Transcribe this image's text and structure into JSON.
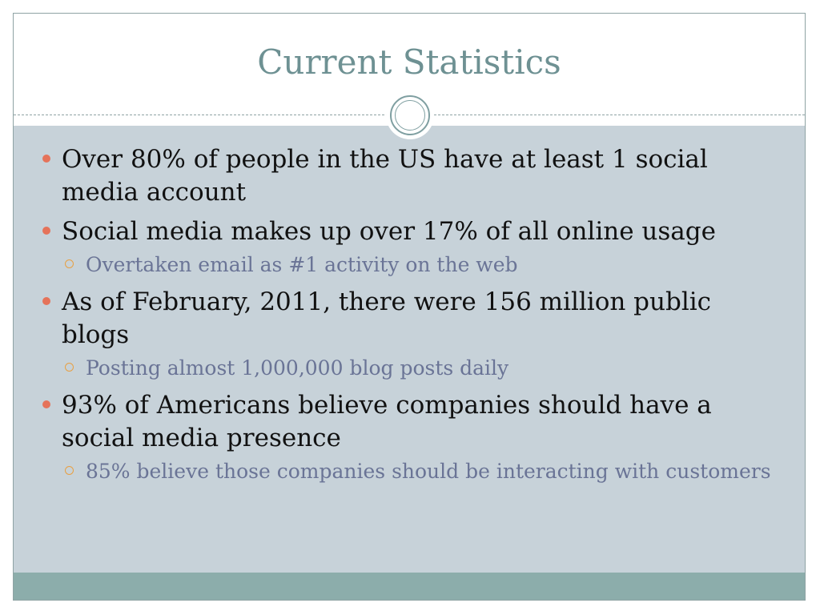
{
  "slide": {
    "title": "Current Statistics",
    "bullets": [
      {
        "text": "Over 80% of people in the US have at least 1 social media account",
        "subitems": []
      },
      {
        "text": "Social media makes up over 17% of all online usage",
        "subitems": [
          "Overtaken email as #1 activity on the web"
        ]
      },
      {
        "text": "As of February, 2011, there were 156 million public blogs",
        "subitems": [
          "Posting almost 1,000,000 blog posts daily"
        ]
      },
      {
        "text": "93% of Americans believe companies should have a social media presence",
        "subitems": [
          "85% believe those companies should be interacting with customers"
        ]
      }
    ]
  },
  "colors": {
    "title": "#6e9193",
    "content_bg": "#c7d2d9",
    "footer_bg": "#8cadab",
    "bullet_dot": "#e5735a",
    "sub_bullet_ring": "#e8a043",
    "sub_text": "#6a7496"
  },
  "icons": {
    "bullet_level1": "filled-circle-icon",
    "bullet_level2": "hollow-circle-icon",
    "divider_ornament": "double-ring-ornament-icon"
  }
}
